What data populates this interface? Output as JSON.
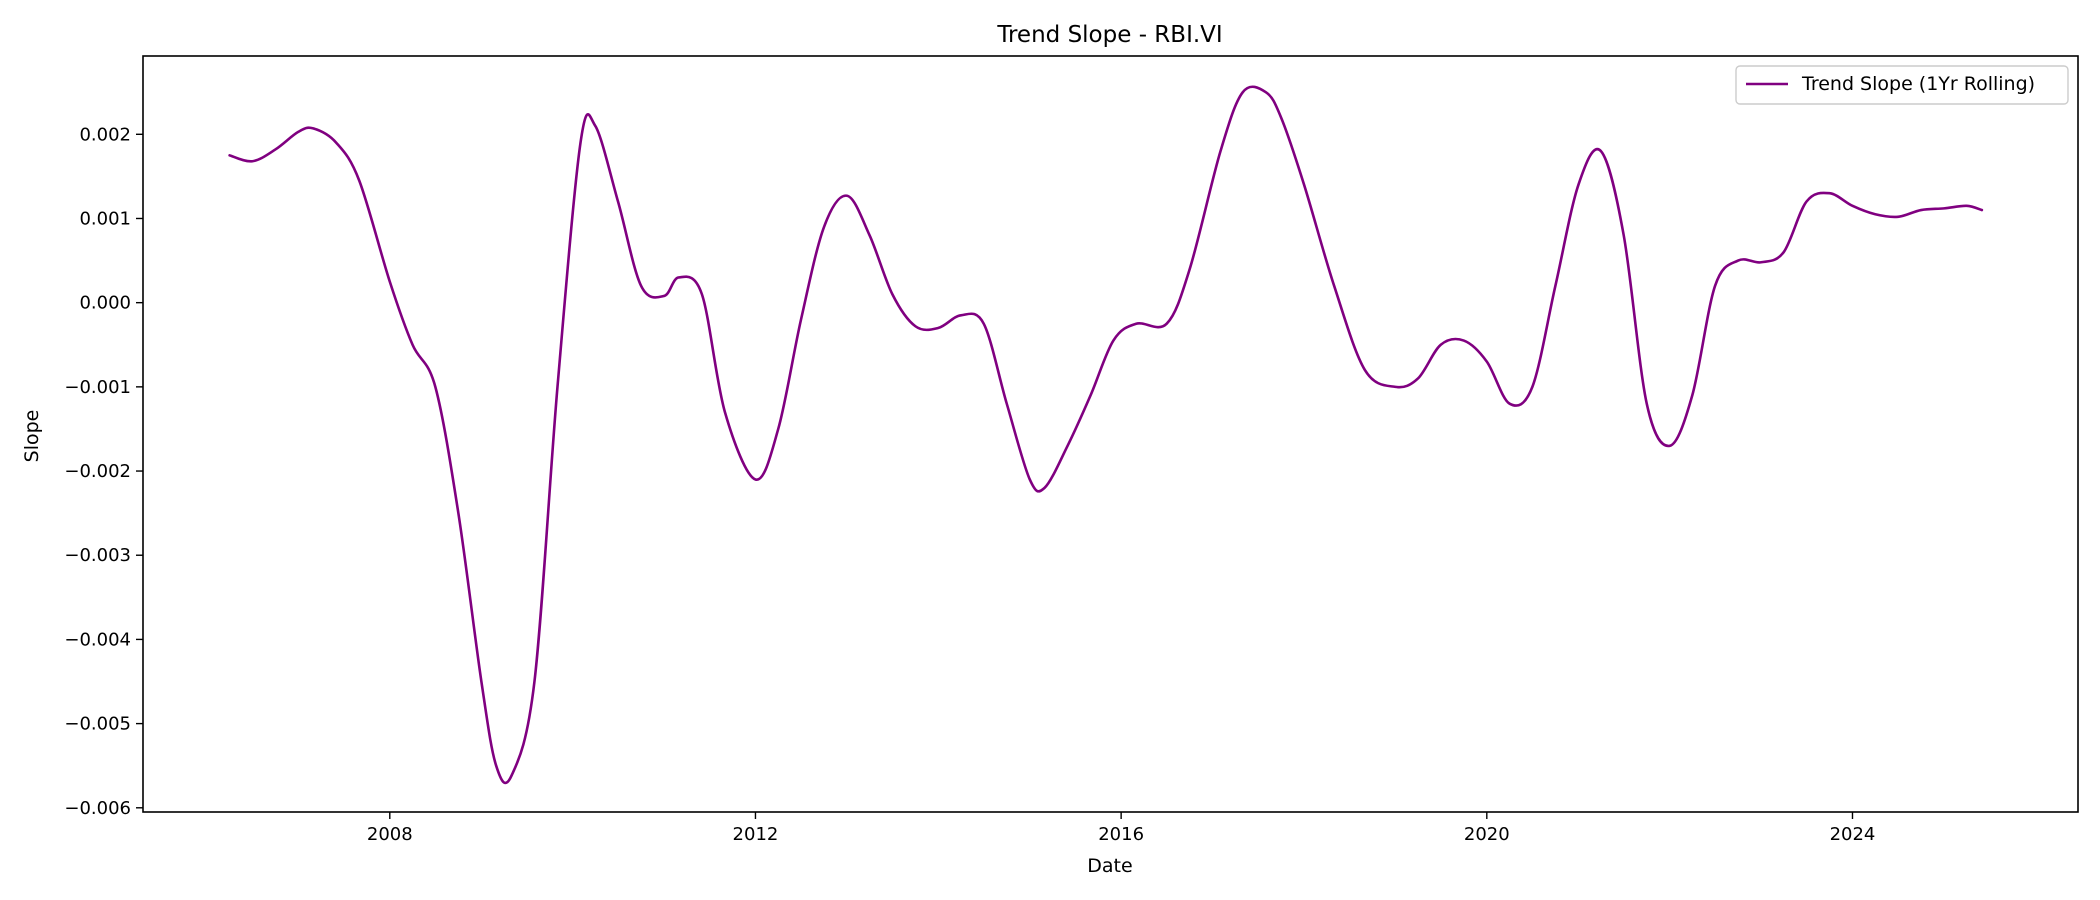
{
  "chart_data": {
    "type": "line",
    "title": "Trend Slope - RBI.VI",
    "xlabel": "Date",
    "ylabel": "Slope",
    "xlim": [
      "2005-04-20",
      "2026-06-20"
    ],
    "ylim": [
      -0.00605,
      0.00293
    ],
    "x_ticks": [
      "2008",
      "2012",
      "2016",
      "2020",
      "2024"
    ],
    "y_ticks": [
      "0.002",
      "0.001",
      "0.000",
      "−0.001",
      "−0.002",
      "−0.003",
      "−0.004",
      "−0.005",
      "−0.006"
    ],
    "grid": false,
    "legend": {
      "position": "top-right",
      "entries": [
        "Trend Slope (1Yr Rolling)"
      ]
    },
    "series": [
      {
        "name": "Trend Slope (1Yr Rolling)",
        "color": "#800080",
        "x": [
          "2006-04-01",
          "2006-07-01",
          "2006-10-01",
          "2007-01-01",
          "2007-03-01",
          "2007-06-01",
          "2007-09-01",
          "2008-01-01",
          "2008-04-01",
          "2008-07-01",
          "2008-10-01",
          "2009-01-01",
          "2009-03-01",
          "2009-05-01",
          "2009-08-01",
          "2009-11-01",
          "2010-02-01",
          "2010-04-01",
          "2010-07-01",
          "2010-10-01",
          "2011-01-01",
          "2011-03-01",
          "2011-06-01",
          "2011-09-01",
          "2012-01-01",
          "2012-04-01",
          "2012-07-01",
          "2012-10-01",
          "2013-01-01",
          "2013-04-01",
          "2013-07-01",
          "2013-10-01",
          "2014-01-01",
          "2014-04-01",
          "2014-07-01",
          "2014-10-01",
          "2015-01-01",
          "2015-03-01",
          "2015-06-01",
          "2015-09-01",
          "2015-12-01",
          "2016-03-01",
          "2016-07-01",
          "2016-10-01",
          "2017-02-01",
          "2017-05-01",
          "2017-08-01",
          "2017-10-01",
          "2018-01-01",
          "2018-05-01",
          "2018-09-01",
          "2019-01-01",
          "2019-04-01",
          "2019-07-01",
          "2019-10-01",
          "2020-01-01",
          "2020-04-01",
          "2020-07-01",
          "2020-10-01",
          "2021-01-01",
          "2021-04-01",
          "2021-07-01",
          "2021-10-01",
          "2022-01-01",
          "2022-04-01",
          "2022-07-01",
          "2022-10-01",
          "2023-01-01",
          "2023-04-01",
          "2023-07-01",
          "2023-10-01",
          "2024-01-01",
          "2024-04-01",
          "2024-07-01",
          "2024-10-01",
          "2025-01-01",
          "2025-04-01",
          "2025-06-01"
        ],
        "y": [
          0.00175,
          0.00168,
          0.00182,
          0.00203,
          0.00207,
          0.0019,
          0.00145,
          0.00025,
          -0.0005,
          -0.001,
          -0.0025,
          -0.0045,
          -0.0055,
          -0.00562,
          -0.0045,
          -0.001,
          0.0019,
          0.0021,
          0.0012,
          0.0002,
          8e-05,
          0.0003,
          0.0001,
          -0.0013,
          -0.0021,
          -0.0015,
          -0.0002,
          0.0009,
          0.00127,
          0.0008,
          0.0001,
          -0.00028,
          -0.0003,
          -0.00015,
          -0.00025,
          -0.0012,
          -0.0021,
          -0.0022,
          -0.0017,
          -0.0011,
          -0.00045,
          -0.00025,
          -0.00025,
          0.0004,
          0.0018,
          0.0025,
          0.0025,
          0.0022,
          0.0014,
          0.0002,
          -0.0008,
          -0.001,
          -0.0009,
          -0.0005,
          -0.00045,
          -0.0007,
          -0.0012,
          -0.001,
          0.0002,
          0.0014,
          0.0018,
          0.0008,
          -0.0012,
          -0.0017,
          -0.0011,
          0.0002,
          0.0005,
          0.00048,
          0.0006,
          0.0012,
          0.0013,
          0.00115,
          0.00105,
          0.00102,
          0.0011,
          0.00112,
          0.00115,
          0.0011
        ]
      }
    ]
  }
}
